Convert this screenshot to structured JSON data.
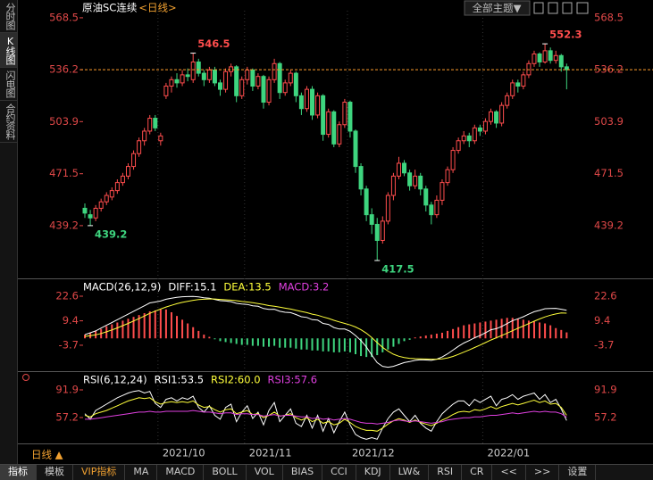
{
  "header": {
    "title": "原油SC连续",
    "period": "<日线>",
    "theme_button": "全部主题▼"
  },
  "sidebar": [
    "分时图",
    "K线图",
    "闪电图",
    "合约资料"
  ],
  "toolbar": {
    "period": "日线 ▲",
    "tabs": [
      "指标",
      "模板",
      "VIP指标",
      "MA",
      "MACD",
      "BOLL",
      "VOL",
      "BIAS",
      "CCI",
      "KDJ",
      "LW&",
      "RSI",
      "CR",
      "<<",
      ">>",
      "设置"
    ]
  },
  "chart_data": [
    {
      "type": "candlestick",
      "up_color": "#ff4d4d",
      "down_color": "#3ed57f",
      "last_line_color": "#ff9d2e",
      "ylim": [
        406.4,
        572.9
      ],
      "yticks": [
        568.5,
        536.2,
        503.9,
        471.5,
        439.2
      ],
      "categories": [
        null,
        null,
        null,
        null,
        null,
        null,
        null,
        null,
        null,
        null,
        null,
        null,
        null,
        null,
        "2021/10",
        null,
        null,
        null,
        null,
        null,
        null,
        null,
        null,
        null,
        null,
        null,
        null,
        null,
        null,
        null,
        "2021/11",
        null,
        null,
        null,
        null,
        null,
        null,
        null,
        null,
        null,
        null,
        null,
        null,
        null,
        null,
        null,
        null,
        null,
        null,
        "2021/12",
        null,
        null,
        null,
        null,
        null,
        null,
        null,
        null,
        null,
        null,
        null,
        null,
        null,
        null,
        null,
        null,
        null,
        null,
        null,
        null,
        null,
        null,
        null,
        null,
        "2022/01",
        null,
        null,
        null,
        null,
        null,
        null,
        null,
        null,
        null,
        null,
        null,
        null,
        null,
        null,
        null
      ],
      "candles": [
        [
          450,
          453,
          444,
          447
        ],
        [
          446,
          449,
          439.2,
          444
        ],
        [
          444,
          452,
          442,
          450
        ],
        [
          450,
          456,
          448,
          454
        ],
        [
          454,
          460,
          452,
          458
        ],
        [
          457,
          463,
          455,
          461
        ],
        [
          461,
          468,
          459,
          466
        ],
        [
          466,
          472,
          464,
          470
        ],
        [
          470,
          478,
          468,
          476
        ],
        [
          476,
          486,
          474,
          484
        ],
        [
          484,
          494,
          482,
          492
        ],
        [
          492,
          500,
          489,
          498
        ],
        [
          498,
          508,
          496,
          506
        ],
        [
          506,
          508,
          498,
          500
        ],
        [
          492,
          497,
          489,
          495
        ],
        [
          520,
          528,
          518,
          526
        ],
        [
          526,
          532,
          522,
          530
        ],
        [
          530,
          534,
          525,
          528
        ],
        [
          528,
          536,
          526,
          533
        ],
        [
          533,
          537,
          529,
          532
        ],
        [
          530,
          546.5,
          528,
          541
        ],
        [
          541,
          543,
          532,
          534
        ],
        [
          534,
          536,
          526,
          530
        ],
        [
          530,
          538,
          528,
          536
        ],
        [
          536,
          538,
          526,
          528
        ],
        [
          528,
          530,
          520,
          524
        ],
        [
          524,
          537,
          522,
          535
        ],
        [
          535,
          540,
          532,
          538
        ],
        [
          538,
          539,
          516,
          520
        ],
        [
          520,
          532,
          518,
          530
        ],
        [
          530,
          538,
          527,
          536
        ],
        [
          536,
          537,
          523,
          526
        ],
        [
          526,
          534,
          524,
          532
        ],
        [
          532,
          533,
          512,
          516
        ],
        [
          516,
          532,
          514,
          530
        ],
        [
          530,
          543,
          528,
          540
        ],
        [
          540,
          541,
          518,
          522
        ],
        [
          522,
          530,
          520,
          528
        ],
        [
          528,
          536,
          526,
          534
        ],
        [
          534,
          535,
          516,
          520
        ],
        [
          520,
          522,
          508,
          512
        ],
        [
          512,
          526,
          510,
          524
        ],
        [
          524,
          526,
          505,
          508
        ],
        [
          508,
          522,
          506,
          520
        ],
        [
          520,
          521,
          492,
          496
        ],
        [
          496,
          512,
          494,
          510
        ],
        [
          510,
          511,
          488,
          490
        ],
        [
          490,
          504,
          488,
          502
        ],
        [
          502,
          518,
          500,
          516
        ],
        [
          516,
          517,
          494,
          498
        ],
        [
          498,
          499,
          472,
          476
        ],
        [
          476,
          478,
          458,
          462
        ],
        [
          462,
          464,
          442,
          446
        ],
        [
          446,
          450,
          434,
          440
        ],
        [
          440,
          444,
          417.5,
          430
        ],
        [
          430,
          445,
          428,
          442
        ],
        [
          442,
          460,
          440,
          458
        ],
        [
          458,
          472,
          455,
          470
        ],
        [
          470,
          482,
          468,
          478
        ],
        [
          478,
          480,
          470,
          472
        ],
        [
          472,
          474,
          461,
          464
        ],
        [
          464,
          474,
          462,
          470
        ],
        [
          470,
          472,
          458,
          462
        ],
        [
          462,
          464,
          448,
          452
        ],
        [
          452,
          454,
          440,
          446
        ],
        [
          446,
          458,
          444,
          455
        ],
        [
          455,
          468,
          452,
          466
        ],
        [
          466,
          476,
          464,
          474
        ],
        [
          474,
          488,
          472,
          486
        ],
        [
          486,
          494,
          484,
          492
        ],
        [
          492,
          498,
          490,
          495
        ],
        [
          495,
          497,
          488,
          492
        ],
        [
          492,
          502,
          490,
          500
        ],
        [
          500,
          502,
          495,
          498
        ],
        [
          498,
          506,
          496,
          504
        ],
        [
          504,
          512,
          502,
          510
        ],
        [
          510,
          511,
          500,
          503
        ],
        [
          503,
          516,
          501,
          514
        ],
        [
          514,
          522,
          512,
          520
        ],
        [
          520,
          530,
          518,
          528
        ],
        [
          528,
          530,
          522,
          526
        ],
        [
          526,
          535,
          524,
          533
        ],
        [
          533,
          542,
          531,
          540
        ],
        [
          540,
          548,
          538,
          546
        ],
        [
          546,
          547,
          538,
          541
        ],
        [
          541,
          552.3,
          540,
          548
        ],
        [
          548,
          550,
          540,
          542
        ],
        [
          542,
          548,
          540,
          545
        ],
        [
          545,
          546,
          535,
          538
        ],
        [
          538,
          540,
          524,
          536.2
        ]
      ]
    },
    {
      "type": "macd",
      "title": "MACD(26,12,9)",
      "ylim": [
        -17.6,
        31.7
      ],
      "yticks": [
        22.6,
        9.4,
        -3.7
      ],
      "up_color": "#ff4d4d",
      "down_color": "#3ed57f",
      "series": [
        {
          "name": "DIFF:15.1",
          "color": "#ffffff",
          "values": [
            2,
            3,
            4,
            5.5,
            7,
            8.5,
            10,
            11.5,
            13,
            14.5,
            16,
            17.5,
            19,
            19.5,
            20,
            21,
            21.5,
            22,
            22.3,
            22.4,
            22.5,
            22.2,
            21.8,
            21.5,
            20.9,
            20.2,
            20,
            19.7,
            18.8,
            18.4,
            18.2,
            17.5,
            17.2,
            16,
            15.5,
            15.6,
            14.5,
            14,
            13.8,
            12.8,
            11.6,
            11.2,
            10,
            9.8,
            8,
            7.5,
            5.8,
            5,
            5,
            3.8,
            1.5,
            -1.2,
            -4.6,
            -9,
            -13,
            -15,
            -15.5,
            -15,
            -14,
            -13,
            -12.5,
            -11.8,
            -11.5,
            -11.6,
            -11.8,
            -11.2,
            -10,
            -8.3,
            -6.3,
            -4.3,
            -2.5,
            -1.2,
            0.3,
            1.5,
            3,
            4.6,
            5.2,
            6.4,
            7.9,
            9.5,
            10.5,
            11.6,
            13,
            14.3,
            15,
            15.9,
            16,
            16.1,
            15.6,
            15.1
          ]
        },
        {
          "name": "DEA:13.5",
          "color": "#ffff3b",
          "values": [
            1,
            1.4,
            1.9,
            2.6,
            3.5,
            4.5,
            5.6,
            6.8,
            8,
            9.3,
            10.6,
            12,
            13.4,
            14.6,
            15.7,
            16.8,
            17.7,
            18.6,
            19.3,
            19.9,
            20.4,
            20.8,
            21,
            21.1,
            21.1,
            20.9,
            20.7,
            20.5,
            20.2,
            19.8,
            19.5,
            19.1,
            18.7,
            18.2,
            17.6,
            17.2,
            16.7,
            16.2,
            15.7,
            15.1,
            14.4,
            13.8,
            13,
            12.4,
            11.5,
            10.7,
            9.7,
            8.8,
            8,
            7.2,
            6.1,
            4.6,
            2.8,
            0.4,
            -2.3,
            -4.8,
            -6.9,
            -8.5,
            -9.6,
            -10.3,
            -10.7,
            -10.9,
            -11,
            -11.1,
            -11.2,
            -11.2,
            -11,
            -10.5,
            -9.7,
            -8.6,
            -7.4,
            -6.2,
            -4.9,
            -3.6,
            -2.3,
            -0.9,
            0.3,
            1.5,
            2.8,
            4.1,
            5.4,
            6.6,
            7.9,
            9.2,
            10.4,
            11.5,
            12.4,
            13.1,
            13.6,
            13.5
          ]
        },
        {
          "name": "MACD:3.2",
          "color": "#e040e0",
          "values": [
            2,
            3,
            4,
            5,
            6.5,
            7.5,
            8.5,
            9.5,
            10.5,
            11.5,
            12.5,
            13.5,
            14.5,
            15,
            15.5,
            15.5,
            14,
            12,
            10,
            8,
            6,
            4,
            2,
            0.8,
            -0.5,
            -1.5,
            -2,
            -2.5,
            -3,
            -3.5,
            -3.5,
            -4,
            -4,
            -4.5,
            -4.5,
            -4,
            -5,
            -5,
            -5,
            -5.5,
            -6,
            -6,
            -6.5,
            -6.5,
            -7,
            -7,
            -7.5,
            -7.5,
            -7,
            -7.5,
            -8.5,
            -9.5,
            -10,
            -10,
            -9,
            -7.5,
            -6,
            -4.5,
            -3,
            -1.5,
            -0.8,
            0.5,
            1,
            1.5,
            2,
            2.5,
            3,
            4,
            5,
            6,
            7,
            7.5,
            8,
            8.5,
            9,
            9.5,
            10,
            10.5,
            11,
            11,
            10.5,
            10,
            9.5,
            9,
            8.5,
            8,
            7,
            5.5,
            4.5,
            3.2
          ]
        }
      ]
    },
    {
      "type": "line",
      "title": "RSI(6,12,24)",
      "ylim": [
        24.7,
        114.3
      ],
      "yticks": [
        91.9,
        57.2
      ],
      "series": [
        {
          "name": "RSI1:53.5",
          "color": "#ffffff",
          "values": [
            62,
            55,
            66,
            70,
            74,
            78,
            82,
            85,
            88,
            90,
            91,
            88,
            90,
            75,
            70,
            80,
            82,
            78,
            82,
            80,
            84,
            70,
            64,
            72,
            60,
            55,
            70,
            74,
            52,
            64,
            72,
            56,
            64,
            48,
            66,
            76,
            52,
            60,
            68,
            50,
            46,
            60,
            44,
            60,
            40,
            56,
            38,
            52,
            64,
            48,
            36,
            32,
            30,
            32,
            30,
            44,
            56,
            64,
            68,
            60,
            52,
            60,
            50,
            44,
            40,
            52,
            62,
            68,
            74,
            78,
            78,
            72,
            80,
            76,
            80,
            84,
            72,
            80,
            82,
            86,
            80,
            84,
            86,
            88,
            80,
            86,
            76,
            80,
            68,
            53.5
          ]
        },
        {
          "name": "RSI2:60.0",
          "color": "#ffff3b",
          "values": [
            60,
            58,
            62,
            64,
            66,
            69,
            72,
            75,
            78,
            80,
            82,
            81,
            82,
            77,
            74,
            76,
            77,
            76,
            77,
            76,
            78,
            73,
            70,
            71,
            67,
            64,
            67,
            68,
            62,
            64,
            66,
            61,
            62,
            57,
            60,
            64,
            59,
            60,
            62,
            57,
            54,
            57,
            52,
            55,
            50,
            52,
            48,
            50,
            55,
            51,
            46,
            43,
            41,
            41,
            40,
            44,
            49,
            53,
            56,
            54,
            51,
            54,
            51,
            49,
            47,
            50,
            54,
            57,
            61,
            64,
            65,
            64,
            67,
            66,
            68,
            71,
            68,
            71,
            73,
            75,
            73,
            75,
            77,
            79,
            76,
            78,
            74,
            75,
            70,
            60
          ]
        },
        {
          "name": "RSI3:57.6",
          "color": "#e040e0",
          "values": [
            55,
            55,
            56,
            57,
            58,
            59,
            60,
            61,
            62,
            63,
            64,
            64,
            65,
            64,
            64,
            65,
            65,
            65,
            65,
            65,
            66,
            65,
            64,
            64,
            63,
            62,
            63,
            63,
            61,
            62,
            62,
            61,
            61,
            59,
            60,
            61,
            59,
            60,
            60,
            59,
            58,
            58,
            56,
            57,
            55,
            56,
            54,
            55,
            56,
            55,
            53,
            51,
            50,
            50,
            49,
            50,
            51,
            53,
            54,
            53,
            52,
            53,
            52,
            51,
            50,
            51,
            52,
            54,
            55,
            56,
            57,
            57,
            58,
            58,
            59,
            60,
            60,
            61,
            62,
            63,
            62,
            63,
            64,
            65,
            64,
            65,
            64,
            64,
            62,
            57.6
          ]
        }
      ]
    }
  ]
}
